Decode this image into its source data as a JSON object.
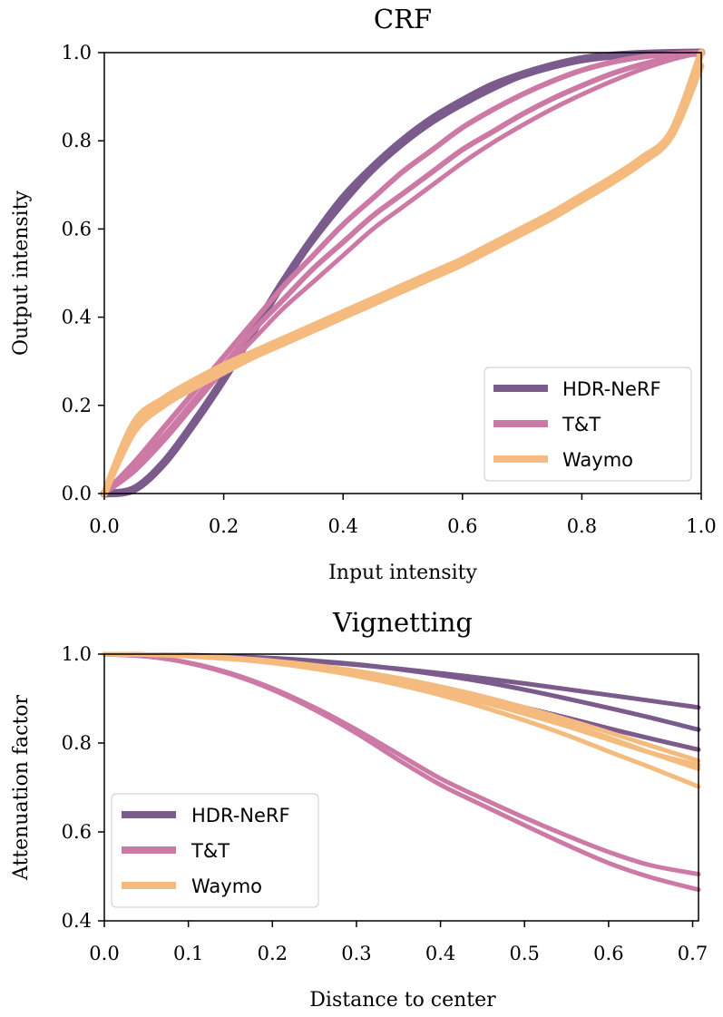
{
  "colors": {
    "HDR-NeRF": "#7b5a8c",
    "T&T": "#cc7aa5",
    "Waymo": "#f5bb7e"
  },
  "chart_data": [
    {
      "type": "line",
      "title": "CRF",
      "xlabel": "Input intensity",
      "ylabel": "Output intensity",
      "xlim": [
        0.0,
        1.0
      ],
      "ylim": [
        0.0,
        1.0
      ],
      "xticks": [
        "0.0",
        "0.2",
        "0.4",
        "0.6",
        "0.8",
        "1.0"
      ],
      "yticks": [
        "0.0",
        "0.2",
        "0.4",
        "0.6",
        "0.8",
        "1.0"
      ],
      "legend_position": "lower-right",
      "legend": [
        "HDR-NeRF",
        "T&T",
        "Waymo"
      ],
      "x": [
        0.0,
        0.05,
        0.1,
        0.15,
        0.2,
        0.25,
        0.3,
        0.35,
        0.4,
        0.45,
        0.5,
        0.55,
        0.6,
        0.65,
        0.7,
        0.75,
        0.8,
        0.85,
        0.9,
        0.95,
        1.0
      ],
      "series": [
        {
          "name": "HDR-NeRF",
          "group": "HDR-NeRF",
          "width": 9,
          "values": [
            0.0,
            0.01,
            0.07,
            0.16,
            0.26,
            0.37,
            0.48,
            0.58,
            0.67,
            0.74,
            0.8,
            0.85,
            0.89,
            0.925,
            0.95,
            0.97,
            0.985,
            0.993,
            0.997,
            0.999,
            1.0
          ]
        },
        {
          "name": "HDR-NeRF",
          "group": "HDR-NeRF",
          "width": 4,
          "values": [
            0.0,
            0.015,
            0.075,
            0.165,
            0.265,
            0.37,
            0.475,
            0.57,
            0.655,
            0.73,
            0.79,
            0.84,
            0.88,
            0.915,
            0.945,
            0.965,
            0.98,
            0.99,
            0.996,
            0.999,
            1.0
          ]
        },
        {
          "name": "T&T",
          "group": "T&T",
          "width": 6,
          "values": [
            0.0,
            0.07,
            0.15,
            0.23,
            0.31,
            0.39,
            0.47,
            0.54,
            0.61,
            0.67,
            0.73,
            0.78,
            0.83,
            0.87,
            0.905,
            0.935,
            0.96,
            0.978,
            0.99,
            0.997,
            1.0
          ]
        },
        {
          "name": "T&T",
          "group": "T&T",
          "width": 6,
          "values": [
            0.0,
            0.06,
            0.13,
            0.21,
            0.29,
            0.37,
            0.44,
            0.51,
            0.57,
            0.63,
            0.68,
            0.73,
            0.78,
            0.82,
            0.86,
            0.895,
            0.925,
            0.952,
            0.973,
            0.989,
            1.0
          ]
        },
        {
          "name": "T&T",
          "group": "T&T",
          "width": 5,
          "values": [
            0.0,
            0.05,
            0.12,
            0.2,
            0.28,
            0.35,
            0.42,
            0.48,
            0.54,
            0.6,
            0.65,
            0.7,
            0.75,
            0.795,
            0.835,
            0.872,
            0.905,
            0.935,
            0.962,
            0.984,
            1.0
          ]
        },
        {
          "name": "Waymo",
          "group": "Waymo",
          "width": 8,
          "values": [
            0.0,
            0.16,
            0.215,
            0.255,
            0.29,
            0.32,
            0.35,
            0.38,
            0.41,
            0.44,
            0.47,
            0.5,
            0.53,
            0.565,
            0.6,
            0.635,
            0.675,
            0.715,
            0.76,
            0.82,
            1.0
          ]
        },
        {
          "name": "Waymo",
          "group": "Waymo",
          "width": 7,
          "values": [
            0.0,
            0.14,
            0.2,
            0.24,
            0.275,
            0.31,
            0.34,
            0.37,
            0.4,
            0.43,
            0.46,
            0.49,
            0.52,
            0.555,
            0.59,
            0.625,
            0.665,
            0.705,
            0.75,
            0.81,
            0.97
          ]
        }
      ]
    },
    {
      "type": "line",
      "title": "Vignetting",
      "xlabel": "Distance to center",
      "ylabel": "Attenuation factor",
      "xlim": [
        0.0,
        0.707
      ],
      "ylim": [
        0.4,
        1.0
      ],
      "xticks": [
        "0.0",
        "0.1",
        "0.2",
        "0.3",
        "0.4",
        "0.5",
        "0.6",
        "0.7"
      ],
      "yticks": [
        "0.4",
        "0.6",
        "0.8",
        "1.0"
      ],
      "legend_position": "lower-left",
      "legend": [
        "HDR-NeRF",
        "T&T",
        "Waymo"
      ],
      "x": [
        0.0,
        0.05,
        0.1,
        0.15,
        0.2,
        0.25,
        0.3,
        0.35,
        0.4,
        0.45,
        0.5,
        0.55,
        0.6,
        0.65,
        0.707
      ],
      "series": [
        {
          "name": "HDR-NeRF",
          "group": "HDR-NeRF",
          "width": 5,
          "values": [
            1.0,
            0.999,
            0.997,
            0.994,
            0.99,
            0.984,
            0.976,
            0.967,
            0.957,
            0.946,
            0.934,
            0.921,
            0.908,
            0.895,
            0.88
          ]
        },
        {
          "name": "HDR-NeRF",
          "group": "HDR-NeRF",
          "width": 5,
          "values": [
            1.0,
            0.999,
            0.996,
            0.991,
            0.983,
            0.972,
            0.958,
            0.942,
            0.923,
            0.902,
            0.88,
            0.857,
            0.833,
            0.81,
            0.785
          ]
        },
        {
          "name": "HDR-NeRF",
          "group": "HDR-NeRF",
          "width": 5,
          "values": [
            1.0,
            0.999,
            0.998,
            0.995,
            0.991,
            0.985,
            0.977,
            0.966,
            0.953,
            0.938,
            0.92,
            0.9,
            0.879,
            0.857,
            0.83
          ]
        },
        {
          "name": "T&T",
          "group": "T&T",
          "width": 5,
          "values": [
            1.0,
            0.995,
            0.98,
            0.955,
            0.92,
            0.875,
            0.822,
            0.762,
            0.706,
            0.66,
            0.615,
            0.571,
            0.53,
            0.498,
            0.47
          ]
        },
        {
          "name": "T&T",
          "group": "T&T",
          "width": 5,
          "values": [
            1.0,
            0.995,
            0.981,
            0.957,
            0.923,
            0.88,
            0.83,
            0.775,
            0.72,
            0.675,
            0.632,
            0.592,
            0.555,
            0.525,
            0.505
          ]
        },
        {
          "name": "Waymo",
          "group": "Waymo",
          "width": 5,
          "values": [
            1.0,
            0.999,
            0.996,
            0.991,
            0.983,
            0.972,
            0.958,
            0.941,
            0.921,
            0.898,
            0.872,
            0.843,
            0.812,
            0.778,
            0.742
          ]
        },
        {
          "name": "Waymo",
          "group": "Waymo",
          "width": 5,
          "values": [
            1.0,
            0.999,
            0.995,
            0.989,
            0.98,
            0.967,
            0.951,
            0.931,
            0.908,
            0.881,
            0.851,
            0.818,
            0.781,
            0.745,
            0.702
          ]
        },
        {
          "name": "Waymo",
          "group": "Waymo",
          "width": 5,
          "values": [
            1.0,
            0.999,
            0.996,
            0.99,
            0.982,
            0.97,
            0.955,
            0.937,
            0.916,
            0.892,
            0.866,
            0.838,
            0.808,
            0.778,
            0.75
          ]
        },
        {
          "name": "Waymo",
          "group": "Waymo",
          "width": 5,
          "values": [
            1.0,
            0.999,
            0.997,
            0.992,
            0.985,
            0.975,
            0.962,
            0.946,
            0.927,
            0.905,
            0.88,
            0.853,
            0.824,
            0.794,
            0.76
          ]
        }
      ]
    }
  ]
}
